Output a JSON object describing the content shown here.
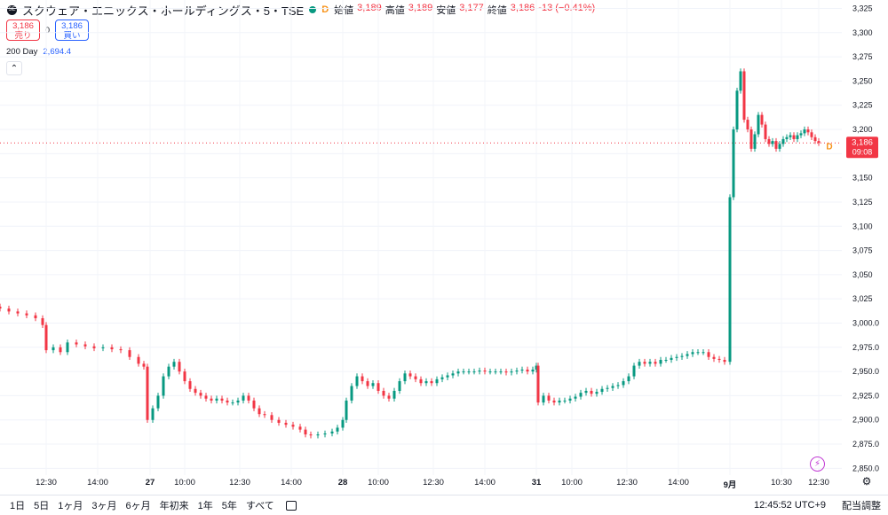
{
  "header": {
    "symbol_title": "スクウェア・エニックス・ホールディングス・5・TSE",
    "badge": "D",
    "ohlc": [
      {
        "label": "始値",
        "value": "3,189"
      },
      {
        "label": "高値",
        "value": "3,189"
      },
      {
        "label": "安値",
        "value": "3,177"
      },
      {
        "label": "終値",
        "value": "3,186"
      }
    ],
    "change": "-13 (−0.41%)"
  },
  "trade": {
    "sell_price": "3,186",
    "sell_label": "売り",
    "spread": "0",
    "buy_price": "3,186",
    "buy_label": "買い"
  },
  "indicator": {
    "name": "200 Day",
    "value": "2,694.4"
  },
  "price_label": {
    "price": "3,186",
    "countdown": "09:08",
    "series_badge": "D"
  },
  "bottom": {
    "ranges": [
      "1日",
      "5日",
      "1ヶ月",
      "3ヶ月",
      "6ヶ月",
      "年初来",
      "1年",
      "5年",
      "すべて"
    ],
    "clock": "12:45:52 UTC+9",
    "adjust": "配当調整"
  },
  "colors": {
    "up": "#089981",
    "down": "#f23645",
    "accent": "#2962ff"
  },
  "chart_data": {
    "type": "candlestick",
    "yticks": [
      2850,
      2875,
      2900,
      2925,
      2950,
      2975,
      3000,
      3025,
      3050,
      3075,
      3100,
      3125,
      3150,
      3175,
      3200,
      3225,
      3250,
      3275,
      3300,
      3325
    ],
    "ytick_labels": [
      "2,850.0",
      "2,875.0",
      "2,900.0",
      "2,925.0",
      "2,950.0",
      "2,975.0",
      "3,000.0",
      "3,025",
      "3,050",
      "3,075",
      "3,100",
      "3,125",
      "3,150",
      "3,175",
      "3,200",
      "3,225",
      "3,250",
      "3,275",
      "3,300",
      "3,325"
    ],
    "ylim": [
      2843,
      3330
    ],
    "xticks": [
      "12:30",
      "14:00",
      "27",
      "10:00",
      "12:30",
      "14:00",
      "28",
      "10:00",
      "12:30",
      "14:00",
      "31",
      "10:00",
      "12:30",
      "14:00",
      "9月",
      "10:30",
      "12:30"
    ],
    "last_price": 3186,
    "series_points": [
      [
        0,
        3015
      ],
      [
        10,
        3012
      ],
      [
        20,
        3010
      ],
      [
        30,
        3008
      ],
      [
        40,
        3005
      ],
      [
        48,
        2998
      ],
      [
        52,
        2972
      ],
      [
        60,
        2975
      ],
      [
        68,
        2970
      ],
      [
        76,
        2980
      ],
      [
        86,
        2978
      ],
      [
        96,
        2976
      ],
      [
        106,
        2974
      ],
      [
        116,
        2975
      ],
      [
        126,
        2973
      ],
      [
        136,
        2972
      ],
      [
        146,
        2965
      ],
      [
        156,
        2958
      ],
      [
        162,
        2955
      ],
      [
        166,
        2900
      ],
      [
        172,
        2912
      ],
      [
        178,
        2925
      ],
      [
        184,
        2945
      ],
      [
        190,
        2955
      ],
      [
        196,
        2960
      ],
      [
        202,
        2950
      ],
      [
        208,
        2940
      ],
      [
        214,
        2932
      ],
      [
        220,
        2928
      ],
      [
        226,
        2925
      ],
      [
        232,
        2922
      ],
      [
        238,
        2920
      ],
      [
        244,
        2922
      ],
      [
        250,
        2920
      ],
      [
        256,
        2918
      ],
      [
        262,
        2918
      ],
      [
        268,
        2920
      ],
      [
        274,
        2925
      ],
      [
        280,
        2920
      ],
      [
        286,
        2912
      ],
      [
        292,
        2906
      ],
      [
        298,
        2905
      ],
      [
        306,
        2900
      ],
      [
        314,
        2897
      ],
      [
        322,
        2895
      ],
      [
        330,
        2893
      ],
      [
        338,
        2890
      ],
      [
        344,
        2885
      ],
      [
        350,
        2884
      ],
      [
        358,
        2885
      ],
      [
        366,
        2886
      ],
      [
        374,
        2888
      ],
      [
        380,
        2892
      ],
      [
        386,
        2900
      ],
      [
        390,
        2920
      ],
      [
        396,
        2935
      ],
      [
        402,
        2945
      ],
      [
        408,
        2940
      ],
      [
        414,
        2935
      ],
      [
        420,
        2938
      ],
      [
        426,
        2930
      ],
      [
        432,
        2925
      ],
      [
        438,
        2922
      ],
      [
        444,
        2930
      ],
      [
        450,
        2940
      ],
      [
        456,
        2948
      ],
      [
        462,
        2945
      ],
      [
        468,
        2942
      ],
      [
        474,
        2938
      ],
      [
        480,
        2940
      ],
      [
        486,
        2938
      ],
      [
        492,
        2942
      ],
      [
        498,
        2944
      ],
      [
        504,
        2946
      ],
      [
        510,
        2948
      ],
      [
        516,
        2950
      ],
      [
        522,
        2950
      ],
      [
        528,
        2950
      ],
      [
        534,
        2950
      ],
      [
        540,
        2951
      ],
      [
        546,
        2950
      ],
      [
        552,
        2950
      ],
      [
        558,
        2950
      ],
      [
        564,
        2950
      ],
      [
        570,
        2949
      ],
      [
        576,
        2950
      ],
      [
        582,
        2951
      ],
      [
        588,
        2952
      ],
      [
        594,
        2950
      ],
      [
        600,
        2952
      ],
      [
        604,
        2956
      ],
      [
        606,
        2918
      ],
      [
        612,
        2925
      ],
      [
        618,
        2920
      ],
      [
        624,
        2918
      ],
      [
        630,
        2920
      ],
      [
        636,
        2920
      ],
      [
        642,
        2922
      ],
      [
        648,
        2924
      ],
      [
        654,
        2928
      ],
      [
        660,
        2930
      ],
      [
        666,
        2927
      ],
      [
        672,
        2929
      ],
      [
        678,
        2932
      ],
      [
        684,
        2933
      ],
      [
        690,
        2935
      ],
      [
        696,
        2936
      ],
      [
        702,
        2940
      ],
      [
        708,
        2945
      ],
      [
        714,
        2956
      ],
      [
        720,
        2960
      ],
      [
        726,
        2958
      ],
      [
        732,
        2960
      ],
      [
        738,
        2958
      ],
      [
        744,
        2962
      ],
      [
        750,
        2962
      ],
      [
        756,
        2964
      ],
      [
        762,
        2965
      ],
      [
        768,
        2966
      ],
      [
        774,
        2968
      ],
      [
        780,
        2970
      ],
      [
        786,
        2970
      ],
      [
        792,
        2970
      ],
      [
        798,
        2965
      ],
      [
        804,
        2963
      ],
      [
        810,
        2962
      ],
      [
        816,
        2960
      ],
      [
        822,
        3130
      ],
      [
        826,
        3200
      ],
      [
        830,
        3240
      ],
      [
        834,
        3260
      ],
      [
        838,
        3210
      ],
      [
        842,
        3200
      ],
      [
        846,
        3180
      ],
      [
        850,
        3195
      ],
      [
        854,
        3215
      ],
      [
        858,
        3205
      ],
      [
        862,
        3190
      ],
      [
        866,
        3185
      ],
      [
        870,
        3188
      ],
      [
        874,
        3180
      ],
      [
        878,
        3185
      ],
      [
        882,
        3190
      ],
      [
        886,
        3192
      ],
      [
        890,
        3194
      ],
      [
        894,
        3190
      ],
      [
        898,
        3194
      ],
      [
        902,
        3196
      ],
      [
        906,
        3200
      ],
      [
        910,
        3197
      ],
      [
        914,
        3192
      ],
      [
        918,
        3188
      ],
      [
        922,
        3186
      ]
    ]
  }
}
